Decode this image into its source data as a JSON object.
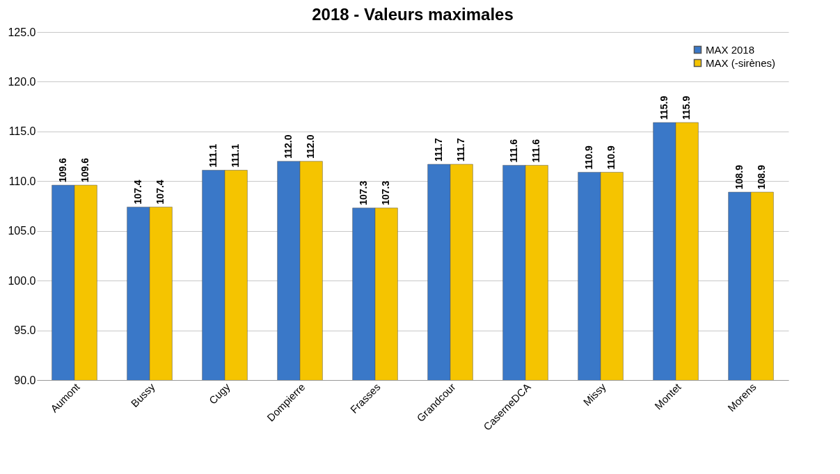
{
  "chart_data": {
    "type": "bar",
    "title": "2018 - Valeurs maximales",
    "categories": [
      "Aumont",
      "Bussy",
      "Cugy",
      "Dompierre",
      "Frasses",
      "Grandcour",
      "CaserneDCA",
      "Missy",
      "Montet",
      "Morens"
    ],
    "series": [
      {
        "name": "MAX 2018",
        "color": "#3a78c8",
        "values": [
          109.6,
          107.4,
          111.1,
          112.0,
          107.3,
          111.7,
          111.6,
          110.9,
          115.9,
          108.9
        ],
        "value_labels": [
          "109.6",
          "107.4",
          "111.1",
          "112.0",
          "107.3",
          "111.7",
          "111.6",
          "110.9",
          "115.9",
          "108.9"
        ]
      },
      {
        "name": "MAX (-sirènes)",
        "color": "#f5c400",
        "values": [
          109.6,
          107.4,
          111.1,
          112.0,
          107.3,
          111.7,
          111.6,
          110.9,
          115.9,
          108.9
        ],
        "value_labels": [
          "109.6",
          "107.4",
          "111.1",
          "112.0",
          "107.3",
          "111.7",
          "111.6",
          "110.9",
          "115.9",
          "108.9"
        ]
      }
    ],
    "ylim": [
      90,
      125
    ],
    "yticks": [
      {
        "value": 90,
        "label": "90.0"
      },
      {
        "value": 95,
        "label": "95.0"
      },
      {
        "value": 100,
        "label": "100.0"
      },
      {
        "value": 105,
        "label": "105.0"
      },
      {
        "value": 110,
        "label": "110.0"
      },
      {
        "value": 115,
        "label": "115.0"
      },
      {
        "value": 120,
        "label": "120.0"
      },
      {
        "value": 125,
        "label": "125.0"
      }
    ],
    "grid": "y",
    "legend": "top right"
  }
}
